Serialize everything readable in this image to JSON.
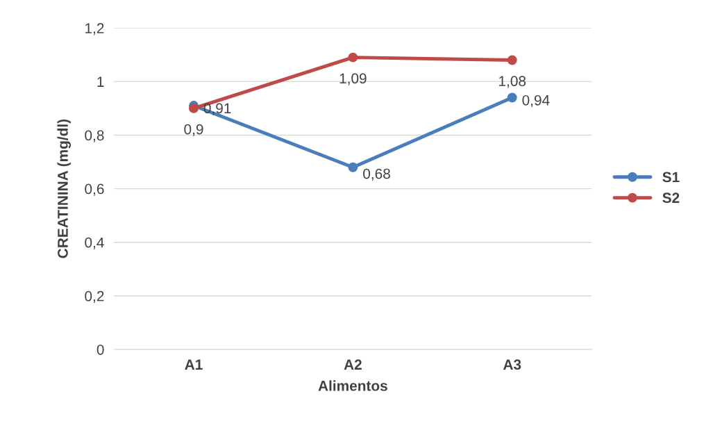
{
  "chart_data": {
    "type": "line",
    "xlabel": "Alimentos",
    "ylabel": "CREATININA (mg/dl)",
    "categories": [
      "A1",
      "A2",
      "A3"
    ],
    "series": [
      {
        "name": "S1",
        "color": "#4a7ebb",
        "values": [
          0.91,
          0.68,
          0.94
        ],
        "value_labels": [
          "0,91",
          "0,68",
          "0,94"
        ]
      },
      {
        "name": "S2",
        "color": "#be4b48",
        "values": [
          0.9,
          1.09,
          1.08
        ],
        "value_labels": [
          "0,9",
          "1,09",
          "1,08"
        ]
      }
    ],
    "ylim": [
      0,
      1.2
    ],
    "yticks": [
      0,
      {
        "value": 0.2,
        "label": "0,2"
      },
      {
        "value": 0.4,
        "label": "0,4"
      },
      {
        "value": 0.6,
        "label": "0,6"
      },
      {
        "value": 0.8,
        "label": "0,8"
      },
      1,
      {
        "value": 1.2,
        "label": "1,2"
      }
    ],
    "grid": "y",
    "legend": "right",
    "marker": "circle",
    "line_style": "solid"
  }
}
